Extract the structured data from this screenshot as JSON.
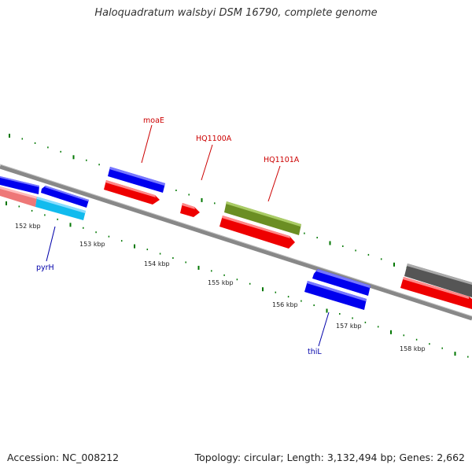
{
  "title": "Haloquadratum walsbyi DSM 16790, complete genome",
  "footer": {
    "accession": "Accession: NC_008212",
    "topology": "Topology: circular; Length: 3,132,494 bp; Genes: 2,662"
  },
  "scale_labels": [
    "152 kbp",
    "153 kbp",
    "154 kbp",
    "155 kbp",
    "156 kbp",
    "157 kbp",
    "158 kbp"
  ],
  "gene_labels": [
    {
      "name": "moaE",
      "color": "#cc0000"
    },
    {
      "name": "HQ1100A",
      "color": "#cc0000"
    },
    {
      "name": "HQ1101A",
      "color": "#cc0000"
    },
    {
      "name": "pyrH",
      "color": "#0000aa"
    },
    {
      "name": "thiL",
      "color": "#0000aa"
    }
  ],
  "colors": {
    "cds_blue": "#0000ee",
    "cds_red": "#ee0000",
    "cds_pink": "#ee7777",
    "cds_cyan": "#11bbee",
    "cds_olive": "#6b8e23",
    "cds_gray": "#555555",
    "backbone": "#888888",
    "tick_green": "#007700"
  }
}
